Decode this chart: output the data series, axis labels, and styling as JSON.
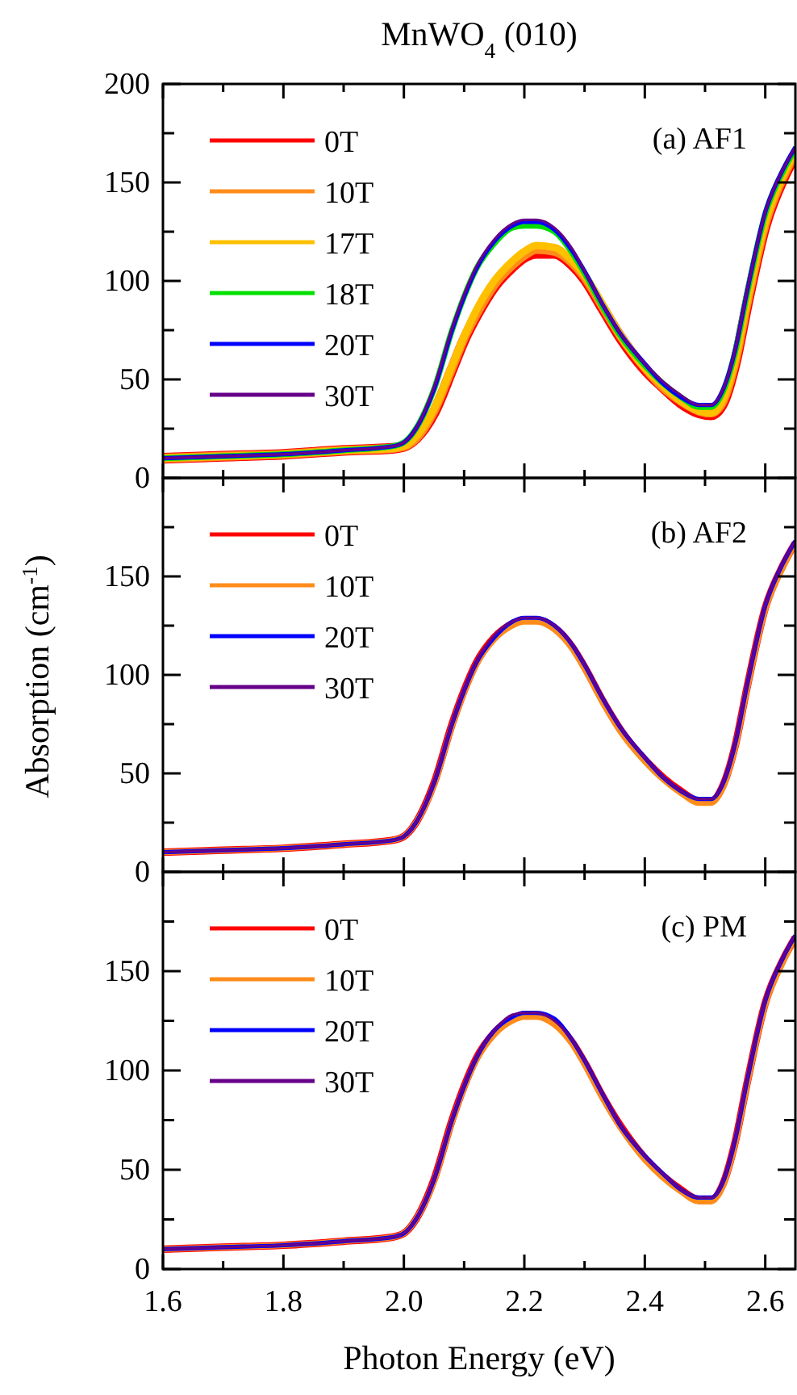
{
  "chart_data": [
    {
      "type": "line",
      "title": "MnWO$_{4}$ (010)",
      "annotations": [
        "(a) AF1"
      ],
      "legend": "top left",
      "tick_labels": "y",
      "xlim": [
        1.6,
        2.65
      ],
      "xticks": [
        1.6,
        {
          "value": 1.7,
          "label": null
        },
        1.8,
        {
          "value": 1.9,
          "label": null
        },
        2,
        {
          "value": 2.1,
          "label": null
        },
        2.2,
        {
          "value": 2.3,
          "label": null
        },
        2.4,
        {
          "value": 2.5,
          "label": null
        },
        2.6
      ],
      "ylim": [
        0,
        200
      ],
      "yticks": [
        0,
        {
          "value": 25,
          "label": null
        },
        50,
        {
          "value": 75,
          "label": null
        },
        100,
        {
          "value": 125,
          "label": null
        },
        150,
        {
          "value": 175,
          "label": null
        },
        200
      ],
      "x": [
        1.6,
        1.7,
        1.8,
        1.9,
        1.98,
        2.0,
        2.02,
        2.05,
        2.08,
        2.1,
        2.12,
        2.15,
        2.18,
        2.2,
        2.22,
        2.25,
        2.28,
        2.3,
        2.33,
        2.36,
        2.4,
        2.43,
        2.46,
        2.49,
        2.51,
        2.53,
        2.55,
        2.57,
        2.6,
        2.63,
        2.65
      ],
      "series": [
        {
          "name": "0T",
          "color": "#ff0000",
          "values": [
            10,
            11,
            12,
            14,
            15,
            16,
            20,
            33,
            55,
            70,
            82,
            97,
            107,
            112,
            114,
            114,
            108,
            101,
            86,
            71,
            55,
            46,
            38,
            33,
            32,
            38,
            58,
            88,
            128,
            152,
            164
          ]
        },
        {
          "name": "10T",
          "color": "#ff8c1a",
          "values": [
            10,
            11,
            12,
            14,
            15,
            16,
            20,
            34,
            56,
            71,
            83,
            98,
            108,
            113,
            116,
            115,
            109,
            102,
            87,
            72,
            56,
            46,
            39,
            34,
            33,
            39,
            59,
            89,
            129,
            153,
            165
          ]
        },
        {
          "name": "17T",
          "color": "#ffc000",
          "values": [
            10,
            11,
            12,
            14,
            15,
            16,
            21,
            35,
            57,
            72,
            85,
            100,
            110,
            115,
            118,
            117,
            110,
            103,
            88,
            72,
            56,
            47,
            39,
            34,
            33,
            40,
            60,
            90,
            130,
            154,
            166
          ]
        },
        {
          "name": "18T",
          "color": "#00e000",
          "values": [
            10,
            11,
            12,
            14,
            16,
            18,
            25,
            45,
            75,
            92,
            106,
            119,
            127,
            128,
            128,
            125,
            114,
            104,
            87,
            72,
            57,
            48,
            41,
            36,
            36,
            44,
            64,
            94,
            134,
            156,
            167
          ]
        },
        {
          "name": "20T",
          "color": "#0000ff",
          "values": [
            10,
            11,
            12,
            14,
            16,
            18,
            25,
            45,
            75,
            92,
            106,
            120,
            128,
            130,
            130,
            126,
            115,
            105,
            88,
            73,
            58,
            48,
            41,
            37,
            37,
            45,
            65,
            95,
            135,
            157,
            168
          ]
        },
        {
          "name": "30T",
          "color": "#660088",
          "values": [
            10,
            11,
            12,
            14,
            16,
            18,
            25,
            46,
            76,
            93,
            107,
            121,
            129,
            131,
            131,
            127,
            116,
            105,
            88,
            73,
            58,
            49,
            42,
            37,
            37,
            45,
            65,
            95,
            135,
            157,
            168
          ]
        }
      ]
    },
    {
      "type": "line",
      "ylabel": "Absorption (cm$^{-1}$)",
      "annotations": [
        "(b) AF2"
      ],
      "legend": "top left",
      "tick_labels": "y",
      "xlim": [
        1.6,
        2.65
      ],
      "xticks": [
        1.6,
        {
          "value": 1.7,
          "label": null
        },
        1.8,
        {
          "value": 1.9,
          "label": null
        },
        2,
        {
          "value": 2.1,
          "label": null
        },
        2.2,
        {
          "value": 2.3,
          "label": null
        },
        2.4,
        {
          "value": 2.5,
          "label": null
        },
        2.6
      ],
      "ylim": [
        0,
        200
      ],
      "yticks": [
        0,
        {
          "value": 25,
          "label": null
        },
        50,
        {
          "value": 75,
          "label": null
        },
        100,
        {
          "value": 125,
          "label": null
        },
        150,
        {
          "value": 175,
          "label": null
        }
      ],
      "x": [
        1.6,
        1.7,
        1.8,
        1.9,
        1.98,
        2.0,
        2.02,
        2.05,
        2.08,
        2.1,
        2.12,
        2.15,
        2.18,
        2.2,
        2.22,
        2.25,
        2.28,
        2.3,
        2.33,
        2.36,
        2.4,
        2.43,
        2.46,
        2.49,
        2.51,
        2.53,
        2.55,
        2.57,
        2.6,
        2.63,
        2.65
      ],
      "series": [
        {
          "name": "0T",
          "color": "#ff0000",
          "values": [
            10,
            11,
            12,
            14,
            16,
            18,
            25,
            45,
            75,
            92,
            106,
            119,
            126,
            128,
            128,
            124,
            114,
            104,
            87,
            72,
            57,
            48,
            41,
            36,
            36,
            44,
            64,
            94,
            134,
            156,
            167
          ]
        },
        {
          "name": "10T",
          "color": "#ff8c1a",
          "values": [
            10,
            11,
            12,
            14,
            16,
            18,
            25,
            44,
            74,
            91,
            105,
            118,
            125,
            127,
            127,
            123,
            113,
            103,
            86,
            71,
            56,
            47,
            40,
            35,
            35,
            43,
            63,
            93,
            133,
            155,
            167
          ]
        },
        {
          "name": "20T",
          "color": "#0000ff",
          "values": [
            10,
            11,
            12,
            14,
            16,
            18,
            25,
            45,
            75,
            92,
            106,
            119,
            127,
            129,
            129,
            125,
            115,
            105,
            88,
            73,
            58,
            48,
            41,
            37,
            37,
            45,
            65,
            95,
            135,
            157,
            168
          ]
        },
        {
          "name": "30T",
          "color": "#660088",
          "values": [
            10,
            11,
            12,
            14,
            16,
            18,
            25,
            45,
            75,
            92,
            106,
            120,
            127,
            129,
            129,
            125,
            115,
            105,
            88,
            73,
            58,
            48,
            41,
            37,
            37,
            45,
            65,
            95,
            135,
            157,
            168
          ]
        }
      ]
    },
    {
      "type": "line",
      "xlabel": "Photon Energy (eV)",
      "annotations": [
        "(c) PM"
      ],
      "legend": "top left",
      "xlim": [
        1.6,
        2.65
      ],
      "xticks": [
        1.6,
        {
          "value": 1.7,
          "label": null
        },
        1.8,
        {
          "value": 1.9,
          "label": null
        },
        {
          "value": 2,
          "label": "2.0"
        },
        {
          "value": 2.1,
          "label": null
        },
        2.2,
        {
          "value": 2.3,
          "label": null
        },
        2.4,
        {
          "value": 2.5,
          "label": null
        },
        2.6
      ],
      "ylim": [
        0,
        200
      ],
      "yticks": [
        0,
        {
          "value": 25,
          "label": null
        },
        50,
        {
          "value": 75,
          "label": null
        },
        100,
        {
          "value": 125,
          "label": null
        },
        150,
        {
          "value": 175,
          "label": null
        }
      ],
      "x": [
        1.6,
        1.7,
        1.8,
        1.9,
        1.98,
        2.0,
        2.02,
        2.05,
        2.08,
        2.1,
        2.12,
        2.15,
        2.18,
        2.2,
        2.22,
        2.25,
        2.28,
        2.3,
        2.33,
        2.36,
        2.4,
        2.43,
        2.46,
        2.49,
        2.51,
        2.53,
        2.55,
        2.57,
        2.6,
        2.63,
        2.65
      ],
      "series": [
        {
          "name": "0T",
          "color": "#ff0000",
          "values": [
            10,
            11,
            12,
            14,
            16,
            18,
            25,
            45,
            75,
            92,
            106,
            119,
            126,
            128,
            128,
            124,
            114,
            104,
            87,
            72,
            56,
            47,
            40,
            35,
            35,
            43,
            64,
            94,
            134,
            156,
            167
          ]
        },
        {
          "name": "10T",
          "color": "#ff8c1a",
          "values": [
            10,
            11,
            12,
            14,
            16,
            18,
            25,
            44,
            74,
            91,
            105,
            118,
            125,
            127,
            127,
            123,
            113,
            103,
            86,
            71,
            55,
            46,
            39,
            34,
            34,
            42,
            63,
            93,
            133,
            155,
            167
          ]
        },
        {
          "name": "20T",
          "color": "#0000ff",
          "values": [
            10,
            11,
            12,
            14,
            16,
            18,
            25,
            45,
            75,
            92,
            106,
            120,
            127,
            129,
            129,
            126,
            115,
            105,
            88,
            72,
            57,
            48,
            40,
            36,
            36,
            44,
            65,
            95,
            135,
            157,
            168
          ]
        },
        {
          "name": "30T",
          "color": "#660088",
          "values": [
            10,
            11,
            12,
            14,
            16,
            18,
            25,
            45,
            75,
            92,
            106,
            120,
            128,
            129,
            129,
            125,
            115,
            105,
            88,
            72,
            57,
            48,
            40,
            36,
            36,
            44,
            65,
            95,
            135,
            157,
            168
          ]
        }
      ]
    }
  ]
}
